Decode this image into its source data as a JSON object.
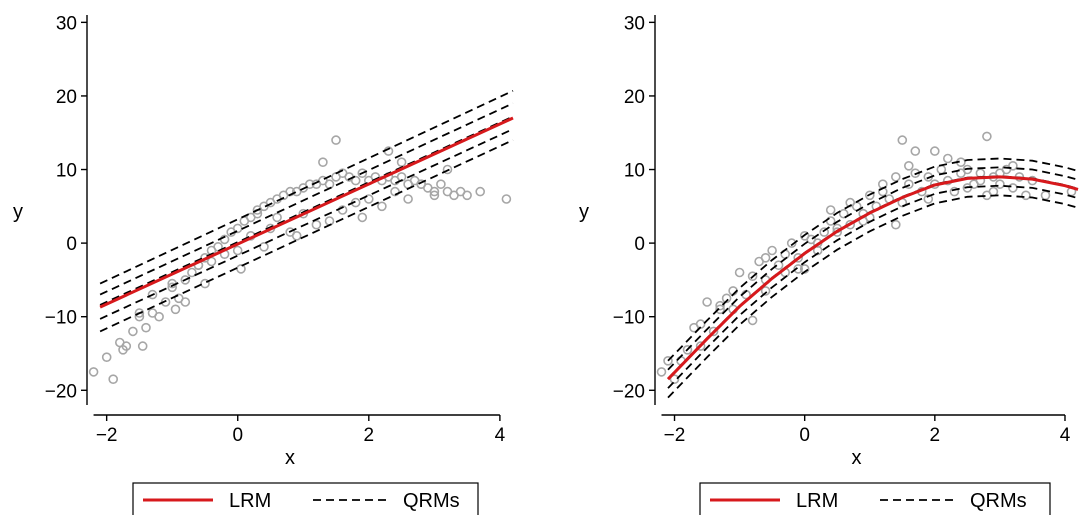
{
  "colors": {
    "lrm": "#d7191c",
    "qrm": "#000000",
    "points": "#a6a6a6",
    "axis": "#000000"
  },
  "chart_data": [
    {
      "type": "scatter",
      "panel": "left",
      "xlabel": "x",
      "ylabel": "y",
      "xlim": [
        -2.3,
        4.2
      ],
      "ylim": [
        -22,
        31
      ],
      "xticks": [
        -2,
        0,
        2,
        4
      ],
      "xtick_labels": [
        "−2",
        "0",
        "2",
        "4"
      ],
      "yticks": [
        -20,
        -10,
        0,
        10,
        20,
        30
      ],
      "ytick_labels": [
        "−20",
        "−10",
        "0",
        "10",
        "20",
        "30"
      ],
      "legend": {
        "position": "bottom",
        "entries": [
          "LRM",
          "QRMs"
        ]
      },
      "series": [
        {
          "name": "LRM",
          "style": "solid",
          "x": [
            -2.1,
            4.2
          ],
          "y": [
            -8.7,
            17.0
          ]
        },
        {
          "name": "QRMs",
          "style": "dashed",
          "x": [
            -2.1,
            4.2
          ],
          "y": [
            -12.0,
            14.0
          ]
        },
        {
          "name": "QRMs",
          "style": "dashed",
          "x": [
            -2.1,
            4.2
          ],
          "y": [
            -10.3,
            15.5
          ]
        },
        {
          "name": "QRMs",
          "style": "dashed",
          "x": [
            -2.1,
            4.2
          ],
          "y": [
            -8.4,
            17.2
          ]
        },
        {
          "name": "QRMs",
          "style": "dashed",
          "x": [
            -2.1,
            4.2
          ],
          "y": [
            -7.0,
            19.0
          ]
        },
        {
          "name": "QRMs",
          "style": "dashed",
          "x": [
            -2.1,
            4.2
          ],
          "y": [
            -5.5,
            20.7
          ]
        }
      ],
      "points": {
        "x": [
          -2.2,
          -2.0,
          -1.9,
          -1.8,
          -1.75,
          -1.7,
          -1.6,
          -1.5,
          -1.45,
          -1.4,
          -1.3,
          -1.2,
          -1.1,
          -1.0,
          -0.95,
          -0.9,
          -0.8,
          -0.7,
          -0.6,
          -0.5,
          -0.4,
          -0.3,
          -0.2,
          -0.1,
          0.0,
          0.05,
          0.1,
          0.2,
          0.3,
          0.4,
          0.5,
          0.6,
          0.7,
          0.8,
          0.9,
          1.0,
          1.1,
          1.2,
          1.3,
          1.4,
          1.5,
          1.6,
          1.7,
          1.8,
          1.9,
          2.0,
          2.1,
          2.2,
          2.3,
          2.4,
          2.5,
          2.6,
          2.7,
          2.8,
          2.9,
          3.0,
          3.1,
          3.2,
          3.3,
          3.4,
          3.5,
          3.7,
          4.1,
          -1.3,
          -1.0,
          -0.6,
          -0.2,
          0.2,
          0.6,
          1.0,
          1.4,
          1.8,
          2.2,
          2.6,
          3.0,
          -0.8,
          -0.4,
          0.0,
          0.4,
          0.8,
          1.2,
          1.6,
          2.0,
          2.4,
          2.8,
          -1.5,
          -0.5,
          0.5,
          1.5,
          2.5,
          3.2,
          0.3,
          1.3,
          2.3,
          0.9,
          1.9
        ],
        "y": [
          -17.5,
          -15.5,
          -18.5,
          -13.5,
          -14.5,
          -14.0,
          -12.0,
          -9.5,
          -14.0,
          -11.5,
          -9.5,
          -10.0,
          -8.0,
          -5.5,
          -9.0,
          -7.5,
          -5.0,
          -4.0,
          -3.0,
          -2.0,
          -1.0,
          -0.5,
          0.5,
          1.5,
          2.0,
          -3.5,
          3.0,
          3.5,
          4.0,
          5.0,
          5.5,
          6.0,
          6.5,
          7.0,
          7.0,
          7.5,
          8.0,
          8.0,
          8.5,
          8.0,
          9.0,
          9.5,
          9.0,
          8.5,
          9.5,
          8.5,
          9.0,
          8.5,
          9.0,
          8.5,
          9.0,
          8.0,
          8.5,
          8.0,
          7.5,
          7.0,
          8.0,
          7.0,
          6.5,
          7.0,
          6.5,
          7.0,
          6.0,
          -7.0,
          -6.0,
          -3.0,
          -1.5,
          1.0,
          3.5,
          4.0,
          3.0,
          5.5,
          5.0,
          6.0,
          6.5,
          -8.0,
          -2.5,
          -1.0,
          -0.5,
          1.5,
          2.5,
          4.5,
          6.0,
          7.0,
          8.0,
          -10.0,
          -5.5,
          2.0,
          14.0,
          11.0,
          10.0,
          4.5,
          11.0,
          12.5,
          1.0,
          3.5
        ]
      }
    },
    {
      "type": "scatter",
      "panel": "right",
      "xlabel": "x",
      "ylabel": "y",
      "xlim": [
        -2.3,
        4.2
      ],
      "ylim": [
        -22,
        31
      ],
      "xticks": [
        -2,
        0,
        2,
        4
      ],
      "xtick_labels": [
        "−2",
        "0",
        "2",
        "4"
      ],
      "yticks": [
        -20,
        -10,
        0,
        10,
        20,
        30
      ],
      "ytick_labels": [
        "−20",
        "−10",
        "0",
        "10",
        "20",
        "30"
      ],
      "legend": {
        "position": "bottom",
        "entries": [
          "LRM",
          "QRMs"
        ]
      },
      "series": [
        {
          "name": "LRM",
          "style": "solid",
          "x": [
            -2.1,
            -1.5,
            -1.0,
            -0.5,
            0.0,
            0.5,
            1.0,
            1.5,
            2.0,
            2.5,
            3.0,
            3.5,
            4.0,
            4.2
          ],
          "y": [
            -18.5,
            -13.0,
            -8.6,
            -4.8,
            -1.4,
            1.6,
            4.1,
            6.2,
            7.9,
            8.8,
            9.0,
            8.7,
            7.8,
            7.3
          ]
        },
        {
          "name": "QRMs",
          "style": "dashed",
          "x": [
            -2.1,
            -1.5,
            -1.0,
            -0.5,
            0.0,
            0.5,
            1.0,
            1.5,
            2.0,
            2.5,
            3.0,
            3.5,
            4.0,
            4.2
          ],
          "y": [
            -21.0,
            -15.5,
            -11.1,
            -7.3,
            -3.9,
            -0.9,
            1.6,
            3.7,
            5.4,
            6.3,
            6.5,
            6.2,
            5.3,
            4.8
          ]
        },
        {
          "name": "QRMs",
          "style": "dashed",
          "x": [
            -2.1,
            -1.5,
            -1.0,
            -0.5,
            0.0,
            0.5,
            1.0,
            1.5,
            2.0,
            2.5,
            3.0,
            3.5,
            4.0,
            4.2
          ],
          "y": [
            -19.7,
            -14.2,
            -9.8,
            -6.0,
            -2.6,
            0.4,
            2.9,
            5.0,
            6.7,
            7.6,
            7.8,
            7.5,
            6.6,
            6.1
          ]
        },
        {
          "name": "QRMs",
          "style": "dashed",
          "x": [
            -2.1,
            -1.5,
            -1.0,
            -0.5,
            0.0,
            0.5,
            1.0,
            1.5,
            2.0,
            2.5,
            3.0,
            3.5,
            4.0,
            4.2
          ],
          "y": [
            -18.4,
            -12.9,
            -8.5,
            -4.7,
            -1.3,
            1.7,
            4.2,
            6.3,
            8.0,
            8.9,
            9.1,
            8.8,
            7.9,
            7.4
          ]
        },
        {
          "name": "QRMs",
          "style": "dashed",
          "x": [
            -2.1,
            -1.5,
            -1.0,
            -0.5,
            0.0,
            0.5,
            1.0,
            1.5,
            2.0,
            2.5,
            3.0,
            3.5,
            4.0,
            4.2
          ],
          "y": [
            -17.2,
            -11.7,
            -7.3,
            -3.5,
            -0.1,
            2.9,
            5.4,
            7.5,
            9.2,
            10.1,
            10.3,
            10.0,
            9.1,
            8.6
          ]
        },
        {
          "name": "QRMs",
          "style": "dashed",
          "x": [
            -2.1,
            -1.5,
            -1.0,
            -0.5,
            0.0,
            0.5,
            1.0,
            1.5,
            2.0,
            2.5,
            3.0,
            3.5,
            4.0,
            4.2
          ],
          "y": [
            -16.0,
            -10.5,
            -6.1,
            -2.3,
            1.1,
            4.1,
            6.6,
            8.7,
            10.4,
            11.3,
            11.5,
            11.2,
            10.3,
            9.8
          ]
        }
      ],
      "points": {
        "x": [
          -2.2,
          -2.1,
          -2.0,
          -1.9,
          -1.8,
          -1.7,
          -1.6,
          -1.5,
          -1.4,
          -1.3,
          -1.2,
          -1.1,
          -1.0,
          -0.9,
          -0.8,
          -0.7,
          -0.6,
          -0.5,
          -0.4,
          -0.3,
          -0.2,
          -0.1,
          0.0,
          0.1,
          0.2,
          0.3,
          0.4,
          0.5,
          0.6,
          0.7,
          0.8,
          0.9,
          1.0,
          1.1,
          1.2,
          1.3,
          1.4,
          1.5,
          1.6,
          1.7,
          1.8,
          1.9,
          2.0,
          2.1,
          2.2,
          2.3,
          2.4,
          2.5,
          2.6,
          2.7,
          2.8,
          2.9,
          3.0,
          3.1,
          3.2,
          3.3,
          3.4,
          3.5,
          3.7,
          4.1,
          -1.6,
          -1.1,
          -0.6,
          -0.1,
          0.4,
          0.9,
          1.4,
          1.9,
          2.4,
          2.9,
          -1.3,
          -0.8,
          -0.3,
          0.2,
          0.7,
          1.2,
          1.7,
          2.2,
          2.7,
          3.2,
          -0.6,
          0.5,
          1.5,
          2.8,
          1.0,
          2.0,
          0.0,
          1.6,
          2.5,
          3.0
        ],
        "y": [
          -17.5,
          -16.0,
          -18.5,
          -16.0,
          -14.5,
          -11.5,
          -11.0,
          -8.0,
          -12.0,
          -8.5,
          -7.5,
          -9.0,
          -4.0,
          -7.0,
          -4.5,
          -2.5,
          -5.0,
          -1.0,
          -3.0,
          -1.5,
          0.0,
          -2.0,
          1.0,
          0.5,
          0.0,
          1.5,
          3.0,
          2.0,
          4.0,
          5.5,
          5.0,
          4.0,
          6.5,
          5.0,
          7.0,
          6.0,
          9.0,
          5.5,
          8.0,
          9.5,
          7.0,
          9.0,
          8.0,
          10.0,
          8.5,
          7.0,
          9.5,
          10.0,
          8.0,
          9.5,
          14.5,
          9.0,
          8.0,
          10.0,
          7.5,
          9.0,
          6.5,
          8.5,
          6.5,
          7.0,
          -14.0,
          -6.5,
          -2.0,
          -3.5,
          4.5,
          3.0,
          2.5,
          6.0,
          11.0,
          7.0,
          -9.0,
          -10.5,
          -4.0,
          -1.0,
          2.5,
          8.0,
          12.5,
          11.5,
          8.5,
          10.5,
          -6.5,
          1.5,
          14.0,
          6.5,
          3.5,
          12.5,
          -3.5,
          10.5,
          7.5,
          9.5
        ]
      }
    }
  ]
}
